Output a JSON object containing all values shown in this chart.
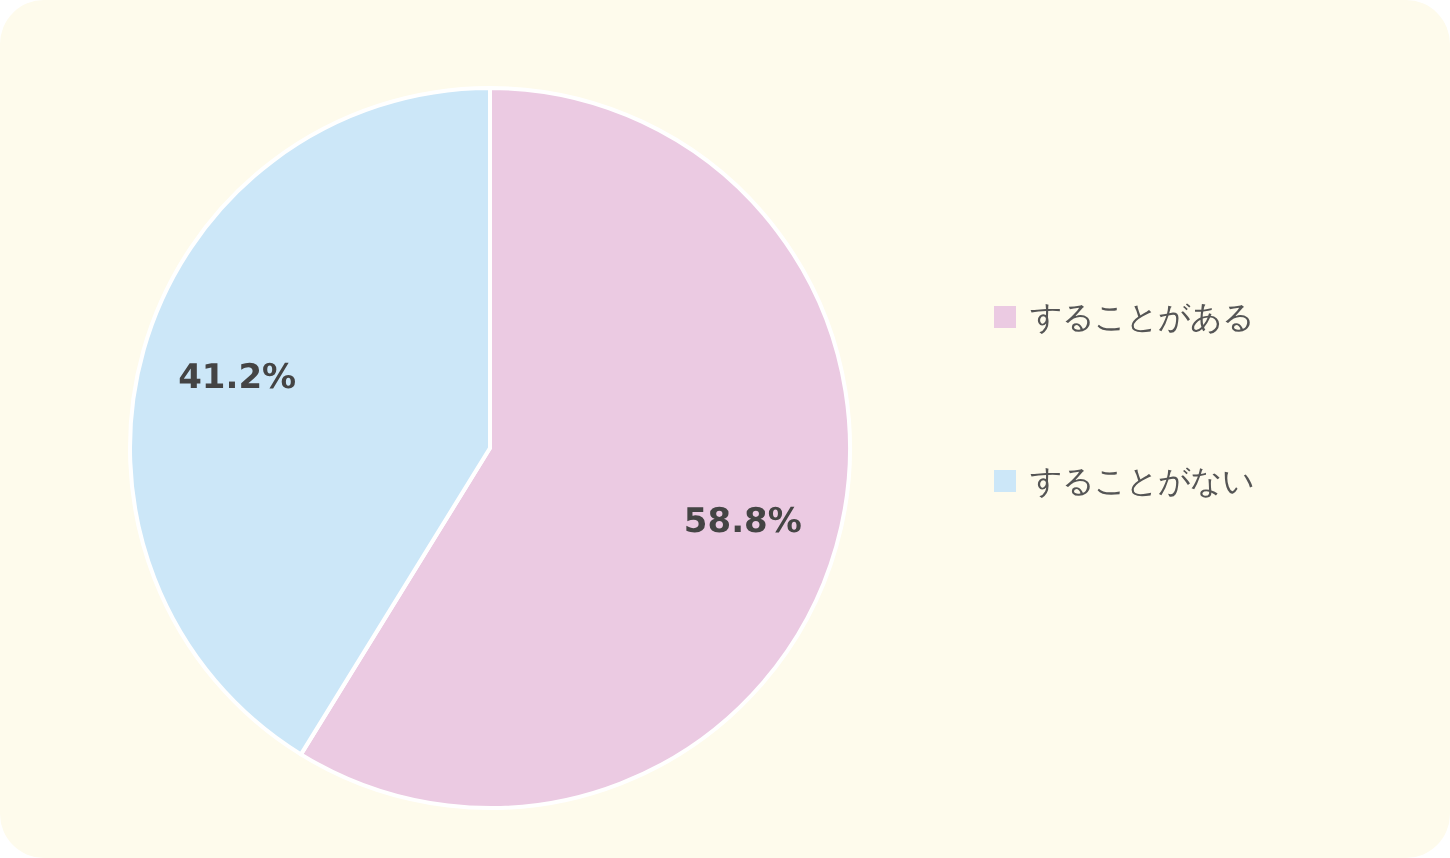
{
  "chart_data": {
    "type": "pie",
    "categories": [
      "することがある",
      "することがない"
    ],
    "values": [
      58.8,
      41.2
    ],
    "colors": [
      "#ebcae2",
      "#cce7f8"
    ],
    "value_labels": [
      "58.8%",
      "41.2%"
    ],
    "legend": "right"
  }
}
